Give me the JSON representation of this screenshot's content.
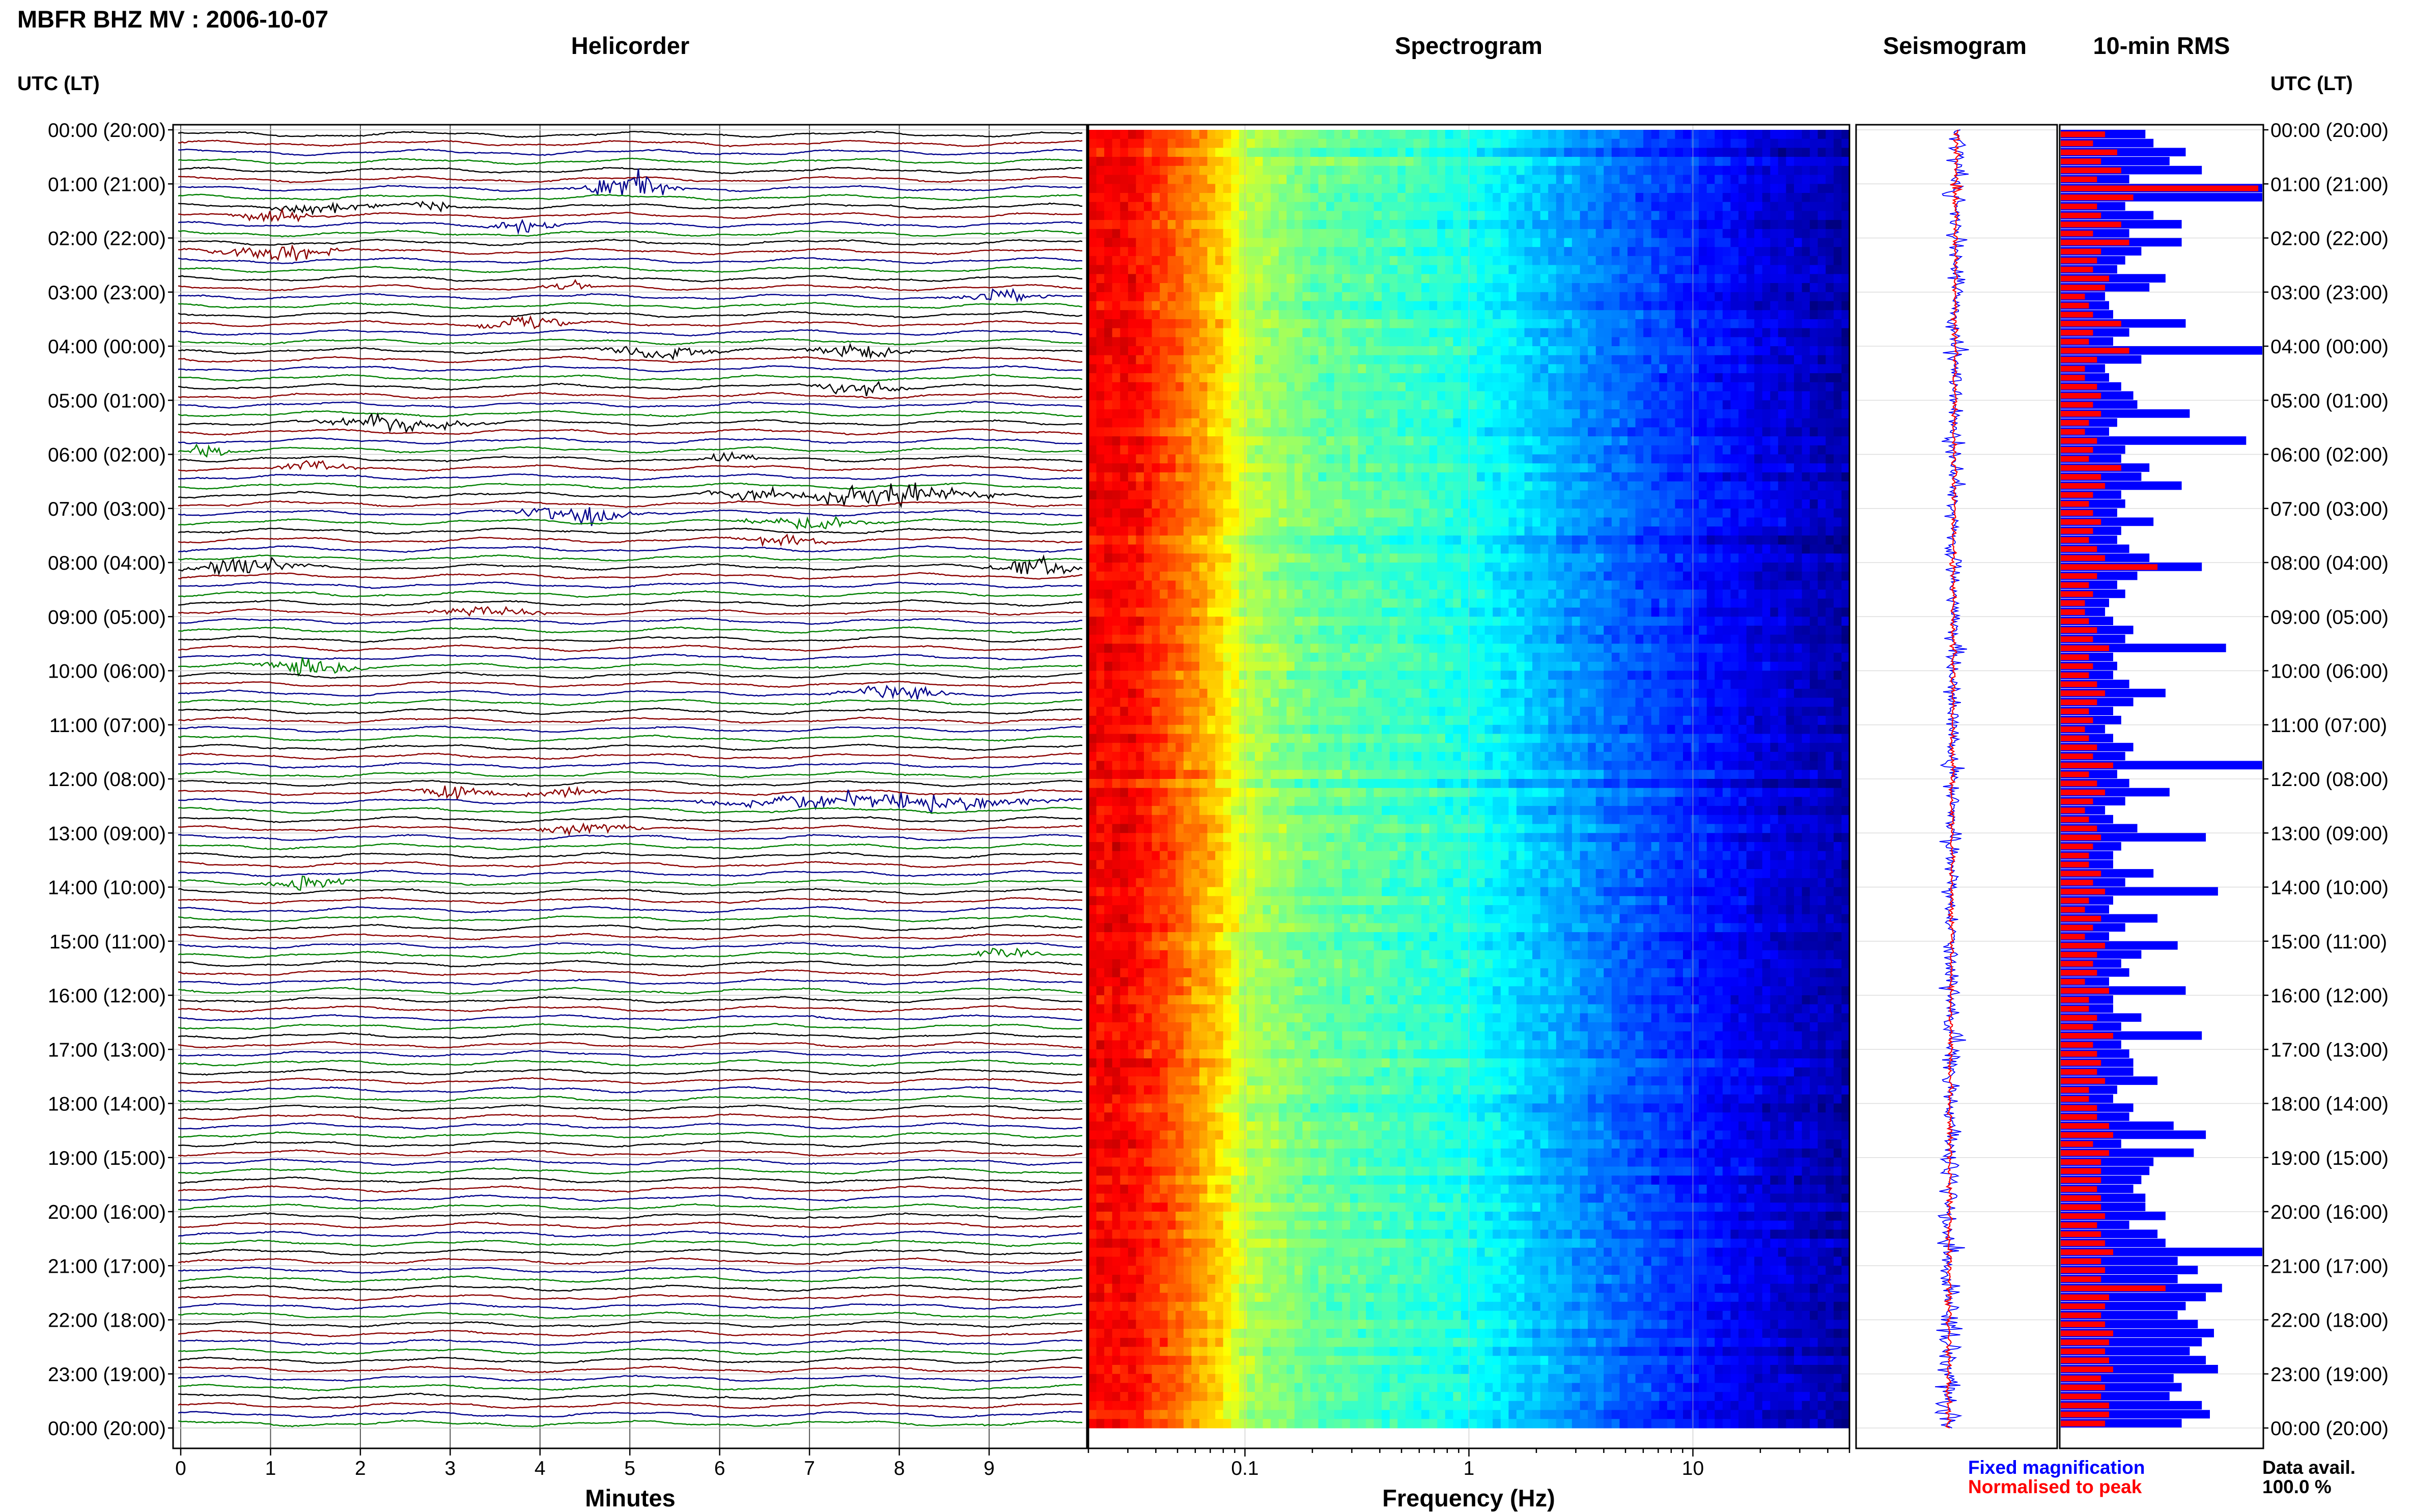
{
  "header": {
    "title": "MBFR BHZ MV : 2006-10-07"
  },
  "panels": {
    "helicorder": {
      "title": "Helicorder",
      "xlabel": "Minutes"
    },
    "spectrogram": {
      "title": "Spectrogram",
      "xlabel": "Frequency (Hz)"
    },
    "seismogram": {
      "title": "Seismogram"
    },
    "rms": {
      "title": "10-min RMS"
    }
  },
  "axes": {
    "left_label": "UTC (LT)",
    "right_label": "UTC (LT)"
  },
  "legend": {
    "fixed": "Fixed magnification",
    "normalised": "Normalised to peak"
  },
  "data_avail": {
    "label": "Data avail.",
    "value": "100.0 %"
  },
  "colors": {
    "trace_cycle": [
      "#000000",
      "#8b0000",
      "#00008b",
      "#008000"
    ],
    "fixed_magnification": "#0000ff",
    "normalised_to_peak": "#ff0000"
  },
  "chart_data": [
    {
      "type": "line",
      "title": "Helicorder",
      "xlabel": "Minutes",
      "ylabel": "UTC (LT)",
      "xlim": [
        0,
        10
      ],
      "xticks": [
        0,
        1,
        2,
        3,
        4,
        5,
        6,
        7,
        8,
        9
      ],
      "rows_per_hour": 6,
      "row_minutes": 10,
      "yticks": [
        "00:00 (20:00)",
        "01:00 (21:00)",
        "02:00 (22:00)",
        "03:00 (23:00)",
        "04:00 (00:00)",
        "05:00 (01:00)",
        "06:00 (02:00)",
        "07:00 (03:00)",
        "08:00 (04:00)",
        "09:00 (05:00)",
        "10:00 (06:00)",
        "11:00 (07:00)",
        "12:00 (08:00)",
        "13:00 (09:00)",
        "14:00 (10:00)",
        "15:00 (11:00)",
        "16:00 (12:00)",
        "17:00 (13:00)",
        "18:00 (14:00)",
        "19:00 (15:00)",
        "20:00 (16:00)",
        "21:00 (17:00)",
        "22:00 (18:00)",
        "23:00 (19:00)",
        "00:00 (20:00)"
      ],
      "events": [
        {
          "row": 6,
          "minute": 4.5,
          "duration": 1.0,
          "amplitude": 2.6
        },
        {
          "row": 8,
          "minute": 1.0,
          "duration": 1.2,
          "amplitude": 1.2
        },
        {
          "row": 8,
          "minute": 2.6,
          "duration": 0.5,
          "amplitude": 1.0
        },
        {
          "row": 9,
          "minute": 0.6,
          "duration": 0.9,
          "amplitude": 1.3
        },
        {
          "row": 10,
          "minute": 3.4,
          "duration": 0.8,
          "amplitude": 1.1
        },
        {
          "row": 13,
          "minute": 0.3,
          "duration": 1.5,
          "amplitude": 1.4
        },
        {
          "row": 17,
          "minute": 4.0,
          "duration": 0.6,
          "amplitude": 0.8
        },
        {
          "row": 18,
          "minute": 8.5,
          "duration": 1.2,
          "amplitude": 1.1
        },
        {
          "row": 21,
          "minute": 3.3,
          "duration": 1.2,
          "amplitude": 1.1
        },
        {
          "row": 24,
          "minute": 4.6,
          "duration": 1.5,
          "amplitude": 0.9
        },
        {
          "row": 24,
          "minute": 6.9,
          "duration": 1.4,
          "amplitude": 1.0
        },
        {
          "row": 28,
          "minute": 7.0,
          "duration": 1.2,
          "amplitude": 1.0
        },
        {
          "row": 32,
          "minute": 1.5,
          "duration": 1.8,
          "amplitude": 1.4
        },
        {
          "row": 35,
          "minute": 0.0,
          "duration": 0.6,
          "amplitude": 0.9
        },
        {
          "row": 36,
          "minute": 5.7,
          "duration": 0.8,
          "amplitude": 0.7
        },
        {
          "row": 37,
          "minute": 1.0,
          "duration": 1.0,
          "amplitude": 0.8
        },
        {
          "row": 40,
          "minute": 5.8,
          "duration": 1.1,
          "amplitude": 0.9
        },
        {
          "row": 40,
          "minute": 6.8,
          "duration": 2.2,
          "amplitude": 1.9
        },
        {
          "row": 42,
          "minute": 3.7,
          "duration": 1.4,
          "amplitude": 1.5
        },
        {
          "row": 43,
          "minute": 6.2,
          "duration": 1.6,
          "amplitude": 0.9
        },
        {
          "row": 45,
          "minute": 6.1,
          "duration": 1.2,
          "amplitude": 0.8
        },
        {
          "row": 48,
          "minute": 0.0,
          "duration": 1.4,
          "amplitude": 1.5
        },
        {
          "row": 48,
          "minute": 9.0,
          "duration": 1.0,
          "amplitude": 1.5
        },
        {
          "row": 53,
          "minute": 2.7,
          "duration": 1.5,
          "amplitude": 0.7
        },
        {
          "row": 59,
          "minute": 0.8,
          "duration": 1.2,
          "amplitude": 1.4
        },
        {
          "row": 62,
          "minute": 7.3,
          "duration": 1.3,
          "amplitude": 1.3
        },
        {
          "row": 73,
          "minute": 2.6,
          "duration": 1.0,
          "amplitude": 1.0
        },
        {
          "row": 73,
          "minute": 3.8,
          "duration": 1.0,
          "amplitude": 0.9
        },
        {
          "row": 74,
          "minute": 5.8,
          "duration": 4.0,
          "amplitude": 1.3
        },
        {
          "row": 77,
          "minute": 3.9,
          "duration": 1.4,
          "amplitude": 1.1
        },
        {
          "row": 83,
          "minute": 0.9,
          "duration": 1.0,
          "amplitude": 1.2
        },
        {
          "row": 91,
          "minute": 8.8,
          "duration": 0.8,
          "amplitude": 0.8
        }
      ]
    },
    {
      "type": "heatmap",
      "title": "Spectrogram",
      "xlabel": "Frequency (Hz)",
      "x_scale": "log",
      "xlim": [
        0.02,
        50
      ],
      "xtick_labels": [
        "0.1",
        "1",
        "10"
      ],
      "xtick_values": [
        0.1,
        1,
        10
      ],
      "colormap": "jet",
      "relative_power_by_frequency": [
        {
          "frequency": 0.03,
          "level": 0.88
        },
        {
          "frequency": 0.05,
          "level": 0.78
        },
        {
          "frequency": 0.08,
          "level": 0.66
        },
        {
          "frequency": 0.1,
          "level": 0.56
        },
        {
          "frequency": 0.2,
          "level": 0.48
        },
        {
          "frequency": 0.5,
          "level": 0.44
        },
        {
          "frequency": 1,
          "level": 0.4
        },
        {
          "frequency": 2,
          "level": 0.32
        },
        {
          "frequency": 5,
          "level": 0.22
        },
        {
          "frequency": 10,
          "level": 0.16
        },
        {
          "frequency": 20,
          "level": 0.1
        },
        {
          "frequency": 50,
          "level": 0.04
        }
      ]
    },
    {
      "type": "line",
      "title": "Seismogram",
      "series": [
        {
          "name": "Fixed magnification"
        },
        {
          "name": "Normalised to peak"
        }
      ]
    },
    {
      "type": "bar",
      "title": "10-min RMS",
      "orientation": "horizontal",
      "series": [
        {
          "name": "Fixed magnification",
          "values": [
            0.42,
            0.46,
            0.62,
            0.54,
            0.7,
            0.34,
            1.0,
            1.0,
            0.32,
            0.46,
            0.6,
            0.34,
            0.6,
            0.4,
            0.32,
            0.28,
            0.52,
            0.44,
            0.22,
            0.24,
            0.26,
            0.62,
            0.34,
            0.26,
            1.0,
            0.4,
            0.22,
            0.24,
            0.3,
            0.36,
            0.38,
            0.64,
            0.28,
            0.24,
            0.92,
            0.32,
            0.3,
            0.44,
            0.4,
            0.6,
            0.3,
            0.32,
            0.28,
            0.46,
            0.3,
            0.28,
            0.34,
            0.44,
            0.7,
            0.38,
            0.28,
            0.32,
            0.24,
            0.22,
            0.26,
            0.36,
            0.32,
            0.82,
            0.26,
            0.28,
            0.26,
            0.34,
            0.52,
            0.36,
            0.26,
            0.3,
            0.22,
            0.26,
            0.36,
            0.32,
            1.0,
            0.28,
            0.34,
            0.54,
            0.32,
            0.22,
            0.26,
            0.38,
            0.72,
            0.3,
            0.26,
            0.26,
            0.46,
            0.32,
            0.78,
            0.26,
            0.24,
            0.48,
            0.32,
            0.24,
            0.58,
            0.4,
            0.3,
            0.34,
            0.24,
            0.62,
            0.26,
            0.26,
            0.4,
            0.3,
            0.7,
            0.3,
            0.34,
            0.36,
            0.36,
            0.48,
            0.28,
            0.26,
            0.36,
            0.34,
            0.56,
            0.72,
            0.3,
            0.66,
            0.46,
            0.44,
            0.4,
            0.36,
            0.42,
            0.42,
            0.52,
            0.34,
            0.48,
            0.52,
            1.0,
            0.58,
            0.68,
            0.58,
            0.8,
            0.72,
            0.62,
            0.58,
            0.68,
            0.76,
            0.7,
            0.64,
            0.72,
            0.78,
            0.56,
            0.6,
            0.54,
            0.7,
            0.74,
            0.6
          ]
        },
        {
          "name": "Normalised to peak",
          "values": [
            0.22,
            0.16,
            0.28,
            0.2,
            0.3,
            0.18,
            0.98,
            0.36,
            0.18,
            0.2,
            0.3,
            0.16,
            0.34,
            0.2,
            0.18,
            0.16,
            0.24,
            0.22,
            0.12,
            0.14,
            0.16,
            0.3,
            0.16,
            0.14,
            0.34,
            0.18,
            0.12,
            0.12,
            0.18,
            0.2,
            0.16,
            0.2,
            0.14,
            0.12,
            0.18,
            0.16,
            0.14,
            0.3,
            0.2,
            0.22,
            0.16,
            0.14,
            0.16,
            0.2,
            0.16,
            0.14,
            0.18,
            0.22,
            0.48,
            0.18,
            0.14,
            0.16,
            0.12,
            0.12,
            0.14,
            0.18,
            0.16,
            0.24,
            0.14,
            0.16,
            0.14,
            0.18,
            0.22,
            0.18,
            0.14,
            0.16,
            0.12,
            0.14,
            0.18,
            0.16,
            0.26,
            0.14,
            0.18,
            0.22,
            0.16,
            0.12,
            0.14,
            0.18,
            0.2,
            0.16,
            0.14,
            0.14,
            0.2,
            0.16,
            0.22,
            0.14,
            0.12,
            0.2,
            0.16,
            0.12,
            0.22,
            0.18,
            0.16,
            0.18,
            0.12,
            0.24,
            0.14,
            0.14,
            0.18,
            0.16,
            0.26,
            0.16,
            0.18,
            0.2,
            0.18,
            0.22,
            0.14,
            0.14,
            0.18,
            0.18,
            0.24,
            0.26,
            0.16,
            0.24,
            0.2,
            0.2,
            0.2,
            0.18,
            0.2,
            0.2,
            0.22,
            0.18,
            0.2,
            0.22,
            0.26,
            0.2,
            0.22,
            0.2,
            0.52,
            0.24,
            0.22,
            0.2,
            0.22,
            0.26,
            0.24,
            0.22,
            0.24,
            0.26,
            0.2,
            0.22,
            0.2,
            0.24,
            0.24,
            0.22
          ]
        }
      ]
    }
  ]
}
